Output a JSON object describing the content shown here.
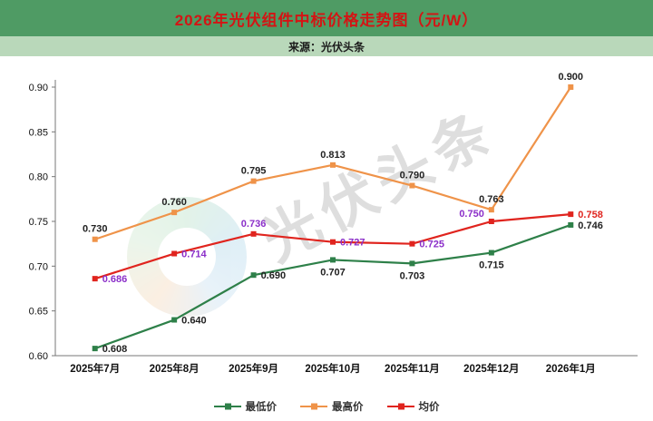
{
  "header": {
    "title": "2026年光伏组件中标价格走势图（元/W）"
  },
  "subheader": {
    "source": "来源：光伏头条"
  },
  "watermark": {
    "text": "光伏头条"
  },
  "colors": {
    "header_bg": "#4f9b64",
    "header_text": "#d41414",
    "source_bg": "#b9d8ba",
    "source_text": "#1a1a1a",
    "min_series": "#2e8049",
    "max_series": "#ef9349",
    "avg_series": "#e0241e",
    "avg_label": "#8b2fc9"
  },
  "chart_data": {
    "type": "line",
    "title": "2026年光伏组件中标价格走势图（元/W）",
    "categories": [
      "2025年7月",
      "2025年8月",
      "2025年9月",
      "2025年10月",
      "2025年11月",
      "2025年12月",
      "2026年1月"
    ],
    "series": [
      {
        "id": "min",
        "name": "最低价",
        "color": "#2e8049",
        "values": [
          0.608,
          0.64,
          0.69,
          0.707,
          0.703,
          0.715,
          0.746
        ],
        "label_color": "#222222",
        "label_positions": [
          "right",
          "right",
          "right",
          "below",
          "below",
          "below",
          "right"
        ]
      },
      {
        "id": "max",
        "name": "最高价",
        "color": "#ef9349",
        "values": [
          0.73,
          0.76,
          0.795,
          0.813,
          0.79,
          0.763,
          0.9
        ],
        "label_color": "#222222",
        "label_positions": [
          "above",
          "above",
          "above",
          "above",
          "above",
          "above",
          "above"
        ]
      },
      {
        "id": "avg",
        "name": "均价",
        "color": "#e0241e",
        "values": [
          0.686,
          0.714,
          0.736,
          0.727,
          0.725,
          0.75,
          0.758
        ],
        "label_color": "#8b2fc9",
        "label_colors": [
          null,
          null,
          null,
          null,
          null,
          null,
          "#e0241e"
        ],
        "label_positions": [
          "right",
          "right",
          "above",
          "right",
          "right",
          "left",
          "right"
        ]
      }
    ],
    "ylim": [
      0.6,
      0.9
    ],
    "yticks": [
      "0.60",
      "0.65",
      "0.70",
      "0.75",
      "0.80",
      "0.85",
      "0.90"
    ],
    "xlabel": "",
    "ylabel": "",
    "grid": false,
    "legend_position": "bottom",
    "value_format": "3dp"
  }
}
